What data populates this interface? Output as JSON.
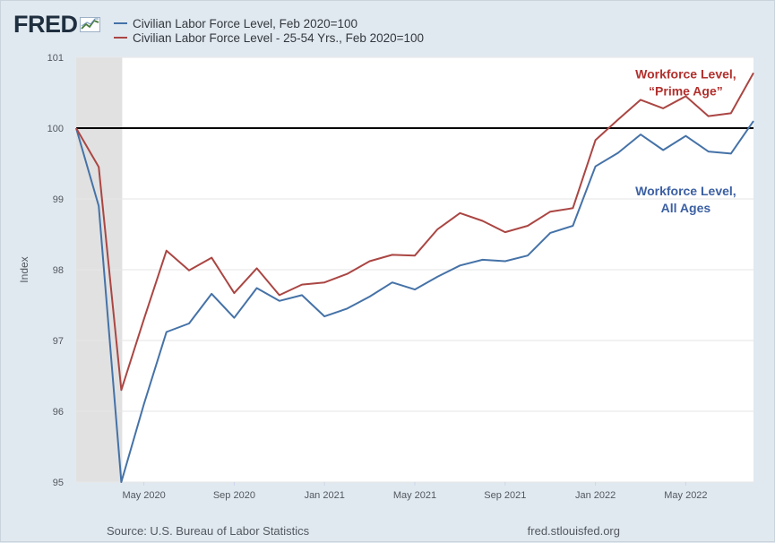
{
  "logo": {
    "text": "FRED"
  },
  "legend": [
    {
      "label": "Civilian Labor Force Level, Feb 2020=100",
      "color": "#4572a7"
    },
    {
      "label": "Civilian Labor Force Level - 25-54 Yrs., Feb 2020=100",
      "color": "#aa4643"
    }
  ],
  "footer": {
    "source": "Source: U.S. Bureau of Labor Statistics",
    "site": "fred.stlouisfed.org"
  },
  "chart_data": {
    "type": "line",
    "ylabel": "Index",
    "ylim": [
      95,
      101
    ],
    "yticks": [
      95,
      96,
      97,
      98,
      99,
      100,
      101
    ],
    "x": [
      "2020-02",
      "2020-03",
      "2020-04",
      "2020-05",
      "2020-06",
      "2020-07",
      "2020-08",
      "2020-09",
      "2020-10",
      "2020-11",
      "2020-12",
      "2021-01",
      "2021-02",
      "2021-03",
      "2021-04",
      "2021-05",
      "2021-06",
      "2021-07",
      "2021-08",
      "2021-09",
      "2021-10",
      "2021-11",
      "2021-12",
      "2022-01",
      "2022-02",
      "2022-03",
      "2022-04",
      "2022-05",
      "2022-06",
      "2022-07",
      "2022-08"
    ],
    "xticks": [
      {
        "x": "2020-05",
        "label": "May 2020"
      },
      {
        "x": "2020-09",
        "label": "Sep 2020"
      },
      {
        "x": "2021-01",
        "label": "Jan 2021"
      },
      {
        "x": "2021-05",
        "label": "May 2021"
      },
      {
        "x": "2021-09",
        "label": "Sep 2021"
      },
      {
        "x": "2022-01",
        "label": "Jan 2022"
      },
      {
        "x": "2022-05",
        "label": "May 2022"
      }
    ],
    "recession": {
      "start": "2020-02",
      "end": "2020-04"
    },
    "reference_line": 100,
    "series": [
      {
        "name": "Civilian Labor Force Level, Feb 2020=100",
        "color": "#4572a7",
        "values": [
          100,
          98.9,
          95.0,
          96.1,
          97.12,
          97.24,
          97.66,
          97.32,
          97.74,
          97.56,
          97.64,
          97.34,
          97.45,
          97.62,
          97.82,
          97.72,
          97.9,
          98.06,
          98.14,
          98.12,
          98.2,
          98.52,
          98.62,
          99.46,
          99.65,
          99.91,
          99.69,
          99.89,
          99.67,
          99.64,
          100.1
        ]
      },
      {
        "name": "Civilian Labor Force Level - 25-54 Yrs., Feb 2020=100",
        "color": "#aa4643",
        "values": [
          100,
          99.45,
          96.3,
          97.3,
          98.27,
          97.99,
          98.17,
          97.67,
          98.02,
          97.64,
          97.79,
          97.82,
          97.94,
          98.12,
          98.21,
          98.2,
          98.57,
          98.8,
          98.69,
          98.53,
          98.62,
          98.82,
          98.87,
          99.83,
          100.12,
          100.4,
          100.28,
          100.45,
          100.17,
          100.21,
          100.78
        ]
      }
    ],
    "annotations": [
      {
        "lines": [
          "Workforce Level,",
          "“Prime Age”"
        ],
        "color": "#b2302d",
        "x": "2022-05",
        "y": 100.7
      },
      {
        "lines": [
          "Workforce Level,",
          "All Ages"
        ],
        "color": "#3b5fa3",
        "x": "2022-05",
        "y": 99.05
      }
    ]
  }
}
